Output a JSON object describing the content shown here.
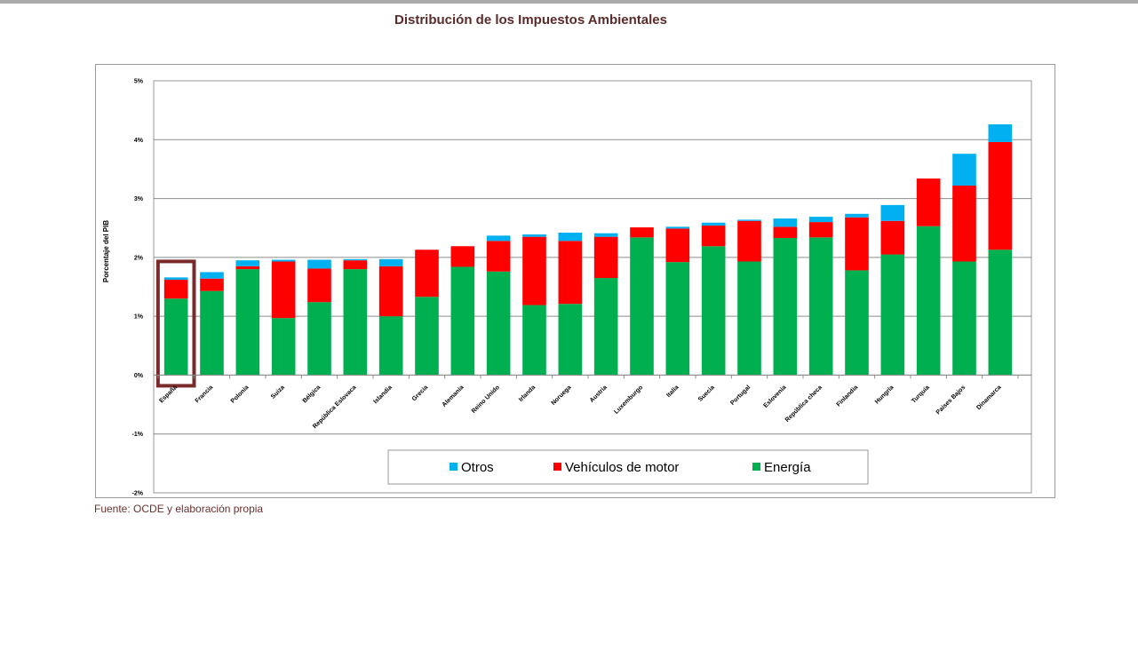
{
  "page": {
    "title": "Distribución de los Impuestos Ambientales",
    "source": "Fuente: OCDE y elaboración propia"
  },
  "chart_data": {
    "type": "bar",
    "stacked": true,
    "title": "Distribución de los Impuestos Ambientales",
    "xlabel": "",
    "ylabel": "Porcentaje del PIB",
    "ylim": [
      -2,
      5
    ],
    "yticks": [
      -2,
      -1,
      0,
      1,
      2,
      3,
      4,
      5
    ],
    "ytick_labels": [
      "-2%",
      "-1%",
      "0%",
      "1%",
      "2%",
      "3%",
      "4%",
      "5%"
    ],
    "grid": true,
    "legend_position": "bottom-center",
    "highlighted_category": "España",
    "highlight_color": "#7a2a2a",
    "categories": [
      "España",
      "Francia",
      "Polonia",
      "Suiza",
      "Bélgica",
      "República Eslovaca",
      "Islandia",
      "Grecia",
      "Alemania",
      "Reino Unido",
      "Irlanda",
      "Noruega",
      "Austria",
      "Luxemburgo",
      "Italia",
      "Suecia",
      "Portugal",
      "Eslovenia",
      "República checa",
      "Finlandia",
      "Hungría",
      "Turquía",
      "Países Bajos",
      "Dinamarca"
    ],
    "series": [
      {
        "name": "Energía",
        "color": "#00b050",
        "values": [
          1.3,
          1.43,
          1.8,
          0.97,
          1.24,
          1.8,
          1.0,
          1.33,
          1.84,
          1.76,
          1.19,
          1.21,
          1.65,
          2.34,
          1.92,
          2.19,
          1.93,
          2.33,
          2.34,
          1.78,
          2.05,
          2.53,
          1.93,
          2.13
        ]
      },
      {
        "name": "Vehículos de motor",
        "color": "#ff0000",
        "values": [
          0.32,
          0.21,
          0.05,
          0.96,
          0.57,
          0.15,
          0.85,
          0.8,
          0.35,
          0.52,
          1.16,
          1.07,
          0.7,
          0.17,
          0.57,
          0.35,
          0.69,
          0.19,
          0.26,
          0.9,
          0.57,
          0.81,
          1.29,
          1.83
        ]
      },
      {
        "name": "Otros",
        "color": "#00b0f0",
        "values": [
          0.04,
          0.11,
          0.1,
          0.03,
          0.15,
          0.02,
          0.12,
          0.0,
          0.0,
          0.09,
          0.04,
          0.14,
          0.06,
          0.0,
          0.03,
          0.05,
          0.02,
          0.14,
          0.09,
          0.06,
          0.27,
          0.0,
          0.54,
          0.3
        ]
      }
    ],
    "legend_order": [
      "Otros",
      "Vehículos de motor",
      "Energía"
    ]
  }
}
